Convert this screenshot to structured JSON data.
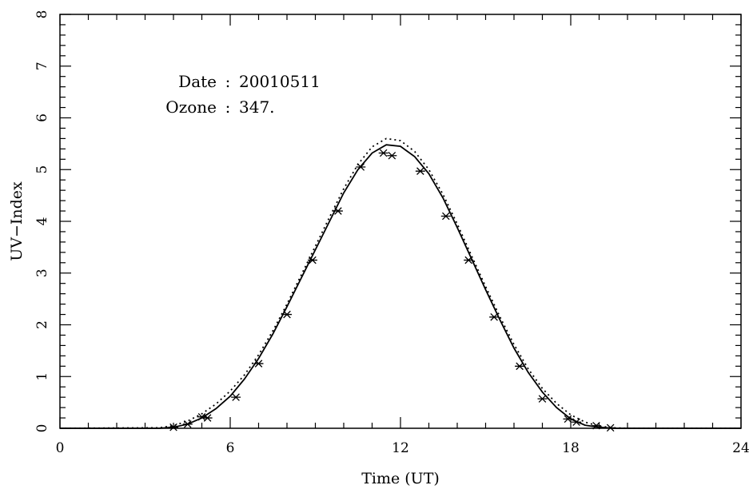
{
  "chart_data": {
    "type": "line",
    "xlabel": "Time (UT)",
    "ylabel": "UV−Index",
    "xlim": [
      0,
      24
    ],
    "ylim": [
      0,
      8
    ],
    "xticks": [
      0,
      6,
      12,
      18,
      24
    ],
    "yticks": [
      0,
      1,
      2,
      3,
      4,
      5,
      6,
      7,
      8
    ],
    "grid": false,
    "annotations": [
      {
        "label": "Date",
        "separator": ":",
        "value": "20010511"
      },
      {
        "label": "Ozone",
        "separator": ":",
        "value": "347."
      }
    ],
    "series": [
      {
        "style": "solid",
        "x": [
          0,
          3.5,
          4.0,
          4.5,
          5.0,
          5.5,
          6.0,
          6.5,
          7.0,
          7.5,
          8.0,
          8.5,
          9.0,
          9.5,
          10.0,
          10.5,
          11.0,
          11.5,
          12.0,
          12.5,
          13.0,
          13.5,
          14.0,
          14.5,
          15.0,
          15.5,
          16.0,
          16.5,
          17.0,
          17.5,
          18.0,
          18.5,
          19.0,
          19.5,
          20.0,
          24
        ],
        "y": [
          0,
          0,
          0.02,
          0.08,
          0.2,
          0.38,
          0.62,
          0.95,
          1.35,
          1.82,
          2.35,
          2.9,
          3.45,
          4.0,
          4.55,
          5.0,
          5.32,
          5.48,
          5.45,
          5.25,
          4.92,
          4.45,
          3.88,
          3.28,
          2.68,
          2.1,
          1.55,
          1.08,
          0.7,
          0.4,
          0.18,
          0.06,
          0.02,
          0,
          0,
          0
        ]
      },
      {
        "style": "dotted",
        "x": [
          0,
          3.5,
          4.0,
          4.5,
          5.0,
          5.5,
          6.0,
          6.5,
          7.0,
          7.5,
          8.0,
          8.5,
          9.0,
          9.5,
          10.0,
          10.5,
          11.0,
          11.5,
          12.0,
          12.5,
          13.0,
          13.5,
          14.0,
          14.5,
          15.0,
          15.5,
          16.0,
          16.5,
          17.0,
          17.5,
          18.0,
          18.5,
          19.0,
          19.5,
          20.0,
          24
        ],
        "y": [
          0,
          0.01,
          0.05,
          0.14,
          0.28,
          0.47,
          0.72,
          1.03,
          1.42,
          1.88,
          2.4,
          2.96,
          3.52,
          4.08,
          4.63,
          5.1,
          5.44,
          5.6,
          5.56,
          5.35,
          5.0,
          4.52,
          3.95,
          3.34,
          2.74,
          2.16,
          1.62,
          1.15,
          0.77,
          0.48,
          0.26,
          0.12,
          0.04,
          0.01,
          0,
          0
        ]
      },
      {
        "style": "markers",
        "marker": "asterisk",
        "x": [
          4.0,
          4.5,
          5.0,
          5.2,
          6.2,
          7.0,
          8.0,
          8.9,
          9.8,
          10.6,
          11.4,
          11.7,
          12.7,
          13.6,
          14.4,
          15.3,
          16.2,
          17.0,
          17.9,
          18.2,
          18.9,
          19.4
        ],
        "y": [
          0.02,
          0.08,
          0.22,
          0.2,
          0.6,
          1.25,
          2.2,
          3.25,
          4.2,
          5.05,
          5.32,
          5.27,
          4.97,
          4.1,
          3.25,
          2.15,
          1.2,
          0.57,
          0.18,
          0.12,
          0.05,
          0.01
        ]
      }
    ]
  }
}
